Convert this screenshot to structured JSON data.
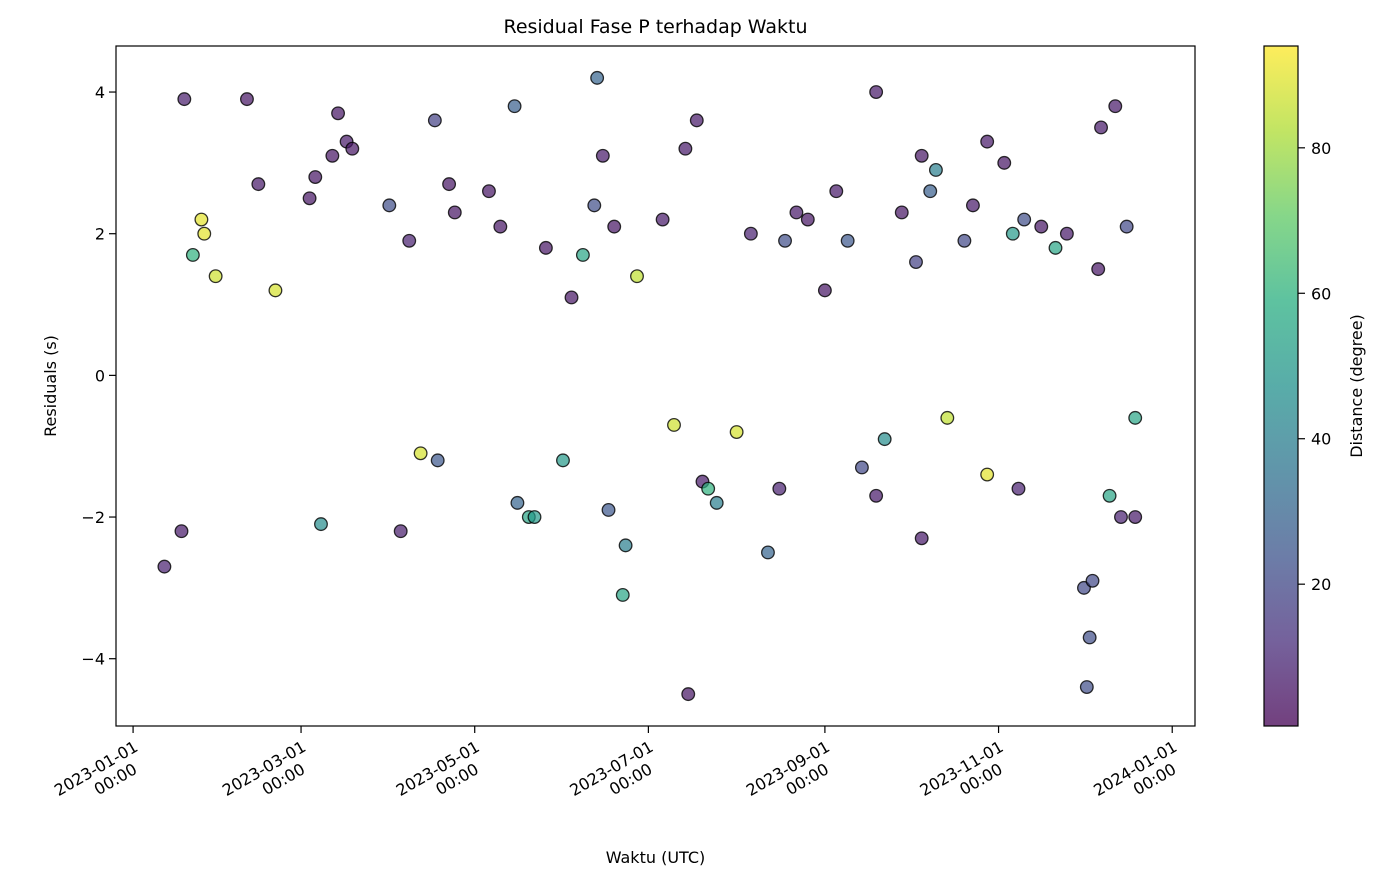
{
  "chart_data": {
    "type": "scatter",
    "title": "Residual Fase P terhadap Waktu",
    "xlabel": "Waktu (UTC)",
    "ylabel": "Residuals (s)",
    "xlim": [
      "2022-12-26",
      "2024-01-09"
    ],
    "ylim": [
      -4.95,
      4.65
    ],
    "x_ticks": [
      {
        "date": "2023-01-01",
        "line1": "2023-01-01",
        "line2": "00:00"
      },
      {
        "date": "2023-03-01",
        "line1": "2023-03-01",
        "line2": "00:00"
      },
      {
        "date": "2023-05-01",
        "line1": "2023-05-01",
        "line2": "00:00"
      },
      {
        "date": "2023-07-01",
        "line1": "2023-07-01",
        "line2": "00:00"
      },
      {
        "date": "2023-09-01",
        "line1": "2023-09-01",
        "line2": "00:00"
      },
      {
        "date": "2023-11-01",
        "line1": "2023-11-01",
        "line2": "00:00"
      },
      {
        "date": "2024-01-01",
        "line1": "2024-01-01",
        "line2": "00:00"
      }
    ],
    "y_ticks": [
      {
        "value": 4,
        "label": "4"
      },
      {
        "value": 2,
        "label": "2"
      },
      {
        "value": 0,
        "label": "0"
      },
      {
        "value": -2,
        "label": "−2"
      },
      {
        "value": -4,
        "label": "−4"
      }
    ],
    "colorbar": {
      "label": "Distance (degree)",
      "range": [
        0.5,
        94
      ],
      "ticks": [
        {
          "value": 20,
          "label": "20"
        },
        {
          "value": 40,
          "label": "40"
        },
        {
          "value": 60,
          "label": "60"
        },
        {
          "value": 80,
          "label": "80"
        }
      ],
      "colormap": "viridis"
    },
    "grid": false,
    "marker_alpha": 0.7,
    "marker_edge": "#000000",
    "series": [
      {
        "columns": [
          "date",
          "residual_s",
          "distance_deg"
        ],
        "points": [
          [
            "2023-01-12",
            -2.7,
            8
          ],
          [
            "2023-01-18",
            -2.2,
            6
          ],
          [
            "2023-01-19",
            3.9,
            7
          ],
          [
            "2023-01-22",
            1.7,
            60
          ],
          [
            "2023-01-25",
            2.2,
            90
          ],
          [
            "2023-01-26",
            2.0,
            90
          ],
          [
            "2023-01-30",
            1.4,
            87
          ],
          [
            "2023-02-10",
            3.9,
            5
          ],
          [
            "2023-02-14",
            2.7,
            6
          ],
          [
            "2023-02-20",
            1.2,
            88
          ],
          [
            "2023-03-04",
            2.5,
            5
          ],
          [
            "2023-03-06",
            2.8,
            5
          ],
          [
            "2023-03-08",
            -2.1,
            45
          ],
          [
            "2023-03-12",
            3.1,
            5
          ],
          [
            "2023-03-14",
            3.7,
            5
          ],
          [
            "2023-03-17",
            3.3,
            6
          ],
          [
            "2023-03-19",
            3.2,
            5
          ],
          [
            "2023-04-01",
            2.4,
            22
          ],
          [
            "2023-04-05",
            -2.2,
            7
          ],
          [
            "2023-04-08",
            1.9,
            8
          ],
          [
            "2023-04-12",
            -1.1,
            88
          ],
          [
            "2023-04-17",
            3.6,
            18
          ],
          [
            "2023-04-18",
            -1.2,
            25
          ],
          [
            "2023-04-22",
            2.7,
            5
          ],
          [
            "2023-04-24",
            2.3,
            5
          ],
          [
            "2023-05-06",
            2.6,
            5
          ],
          [
            "2023-05-10",
            2.1,
            5
          ],
          [
            "2023-05-15",
            3.8,
            28
          ],
          [
            "2023-05-16",
            -1.8,
            30
          ],
          [
            "2023-05-20",
            -2.0,
            55
          ],
          [
            "2023-05-22",
            -2.0,
            50
          ],
          [
            "2023-05-26",
            1.8,
            5
          ],
          [
            "2023-06-01",
            -1.2,
            50
          ],
          [
            "2023-06-04",
            1.1,
            5
          ],
          [
            "2023-06-08",
            1.7,
            55
          ],
          [
            "2023-06-12",
            2.4,
            22
          ],
          [
            "2023-06-13",
            4.2,
            30
          ],
          [
            "2023-06-15",
            3.1,
            6
          ],
          [
            "2023-06-17",
            -1.9,
            25
          ],
          [
            "2023-06-19",
            2.1,
            5
          ],
          [
            "2023-06-22",
            -3.1,
            55
          ],
          [
            "2023-06-23",
            -2.4,
            40
          ],
          [
            "2023-06-27",
            1.4,
            85
          ],
          [
            "2023-07-06",
            2.2,
            6
          ],
          [
            "2023-07-10",
            -0.7,
            87
          ],
          [
            "2023-07-14",
            3.2,
            6
          ],
          [
            "2023-07-15",
            -4.5,
            5
          ],
          [
            "2023-07-18",
            3.6,
            6
          ],
          [
            "2023-07-20",
            -1.5,
            6
          ],
          [
            "2023-07-22",
            -1.6,
            60
          ],
          [
            "2023-07-25",
            -1.8,
            40
          ],
          [
            "2023-08-01",
            -0.8,
            88
          ],
          [
            "2023-08-06",
            2.0,
            8
          ],
          [
            "2023-08-12",
            -2.5,
            30
          ],
          [
            "2023-08-16",
            -1.6,
            8
          ],
          [
            "2023-08-18",
            1.9,
            22
          ],
          [
            "2023-08-22",
            2.3,
            6
          ],
          [
            "2023-08-26",
            2.2,
            5
          ],
          [
            "2023-09-01",
            1.2,
            5
          ],
          [
            "2023-09-05",
            2.6,
            6
          ],
          [
            "2023-09-09",
            1.9,
            25
          ],
          [
            "2023-09-14",
            -1.3,
            20
          ],
          [
            "2023-09-19",
            4.0,
            6
          ],
          [
            "2023-09-19",
            -1.7,
            6
          ],
          [
            "2023-09-22",
            -0.9,
            45
          ],
          [
            "2023-09-28",
            2.3,
            5
          ],
          [
            "2023-10-03",
            1.6,
            18
          ],
          [
            "2023-10-05",
            3.1,
            5
          ],
          [
            "2023-10-05",
            -2.3,
            6
          ],
          [
            "2023-10-08",
            2.6,
            28
          ],
          [
            "2023-10-10",
            2.9,
            40
          ],
          [
            "2023-10-14",
            -0.6,
            85
          ],
          [
            "2023-10-20",
            1.9,
            20
          ],
          [
            "2023-10-23",
            2.4,
            6
          ],
          [
            "2023-10-28",
            3.3,
            6
          ],
          [
            "2023-10-28",
            -1.4,
            90
          ],
          [
            "2023-11-03",
            3.0,
            5
          ],
          [
            "2023-11-06",
            2.0,
            50
          ],
          [
            "2023-11-08",
            -1.6,
            8
          ],
          [
            "2023-11-10",
            2.2,
            22
          ],
          [
            "2023-11-16",
            2.1,
            5
          ],
          [
            "2023-11-21",
            1.8,
            55
          ],
          [
            "2023-11-25",
            2.0,
            6
          ],
          [
            "2023-12-01",
            -3.0,
            20
          ],
          [
            "2023-12-02",
            -4.4,
            22
          ],
          [
            "2023-12-03",
            -3.7,
            22
          ],
          [
            "2023-12-04",
            -2.9,
            20
          ],
          [
            "2023-12-06",
            1.5,
            5
          ],
          [
            "2023-12-07",
            3.5,
            6
          ],
          [
            "2023-12-10",
            -1.7,
            55
          ],
          [
            "2023-12-12",
            3.8,
            6
          ],
          [
            "2023-12-14",
            -2.0,
            8
          ],
          [
            "2023-12-16",
            2.1,
            20
          ],
          [
            "2023-12-19",
            -2.0,
            6
          ],
          [
            "2023-12-19",
            -0.6,
            55
          ]
        ]
      }
    ]
  }
}
